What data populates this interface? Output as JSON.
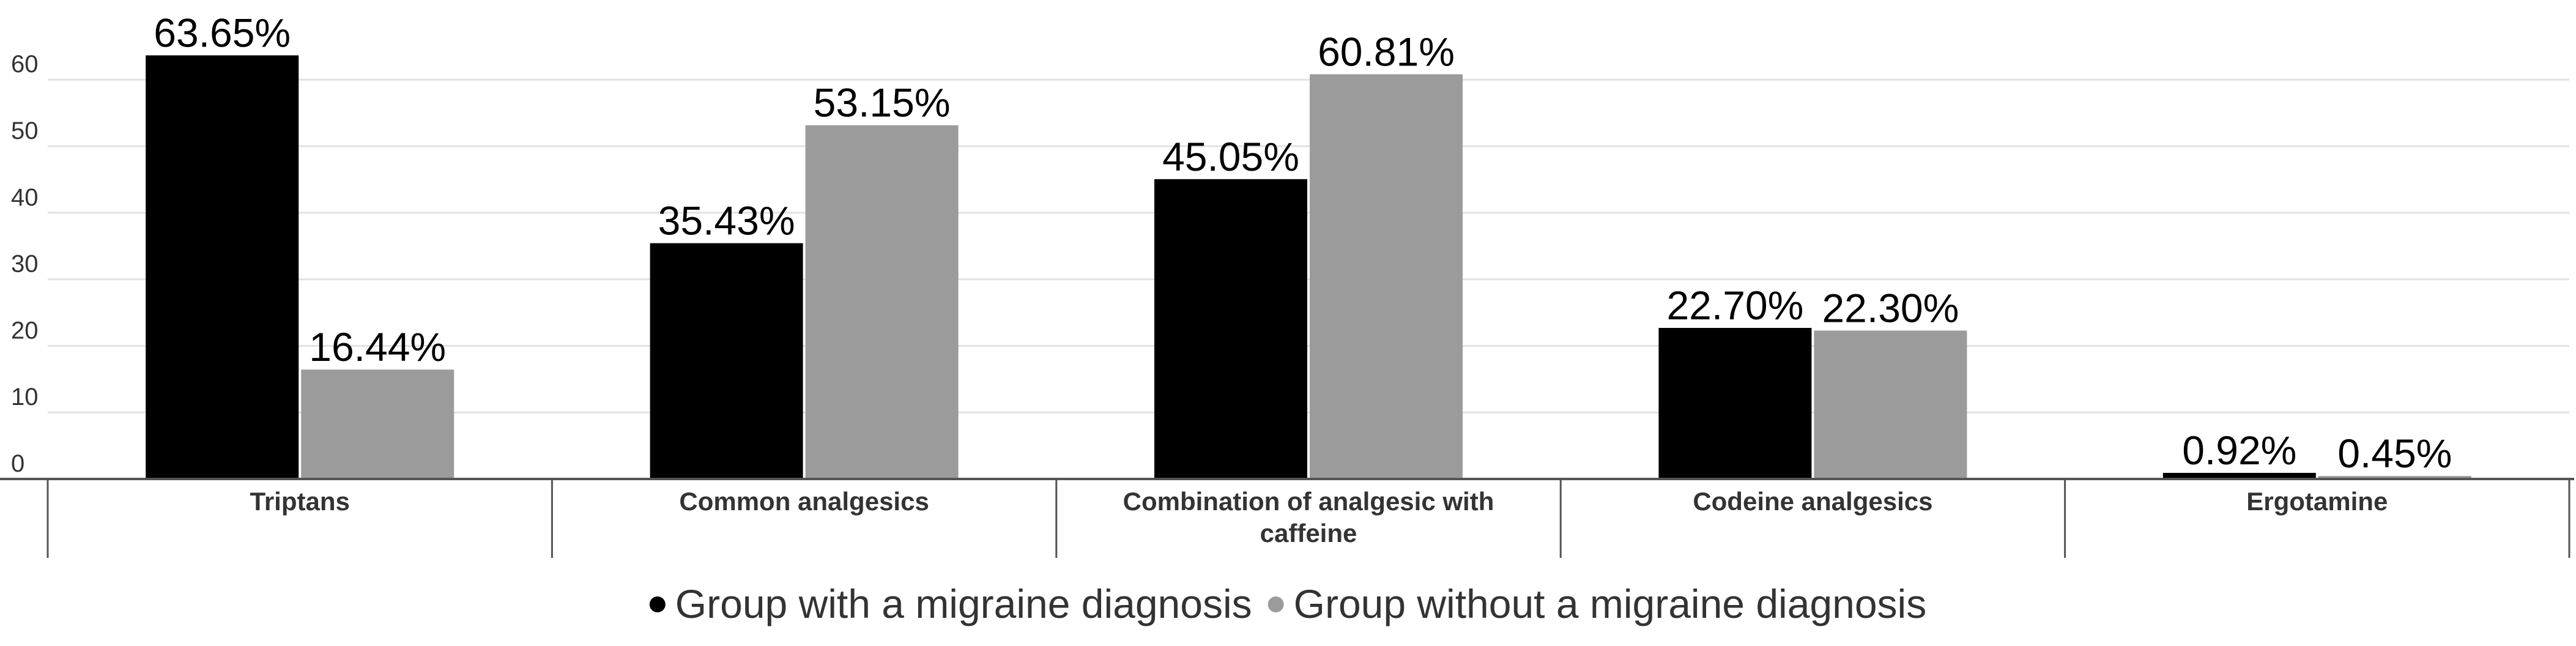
{
  "chart_data": {
    "type": "bar",
    "categories": [
      [
        "Triptans"
      ],
      [
        "Common analgesics"
      ],
      [
        "Combination of analgesic with",
        "caffeine"
      ],
      [
        "Codeine analgesics"
      ],
      [
        "Ergotamine"
      ]
    ],
    "series": [
      {
        "name": "Group with a migraine diagnosis",
        "color": "#000000",
        "values": [
          63.65,
          35.43,
          45.05,
          22.7,
          0.92
        ],
        "labels": [
          "63.65%",
          "35.43%",
          "45.05%",
          "22.70%",
          "0.92%"
        ]
      },
      {
        "name": "Group without a migraine diagnosis",
        "color": "#9b9b9b",
        "values": [
          16.44,
          53.15,
          60.81,
          22.3,
          0.45
        ],
        "labels": [
          "16.44%",
          "53.15%",
          "60.81%",
          "22.30%",
          "0.45%"
        ]
      }
    ],
    "yticks": [
      "0",
      "10",
      "20",
      "30",
      "40",
      "50",
      "60"
    ],
    "ylim": [
      0,
      70
    ],
    "grid": true,
    "legend_position": "bottom"
  }
}
